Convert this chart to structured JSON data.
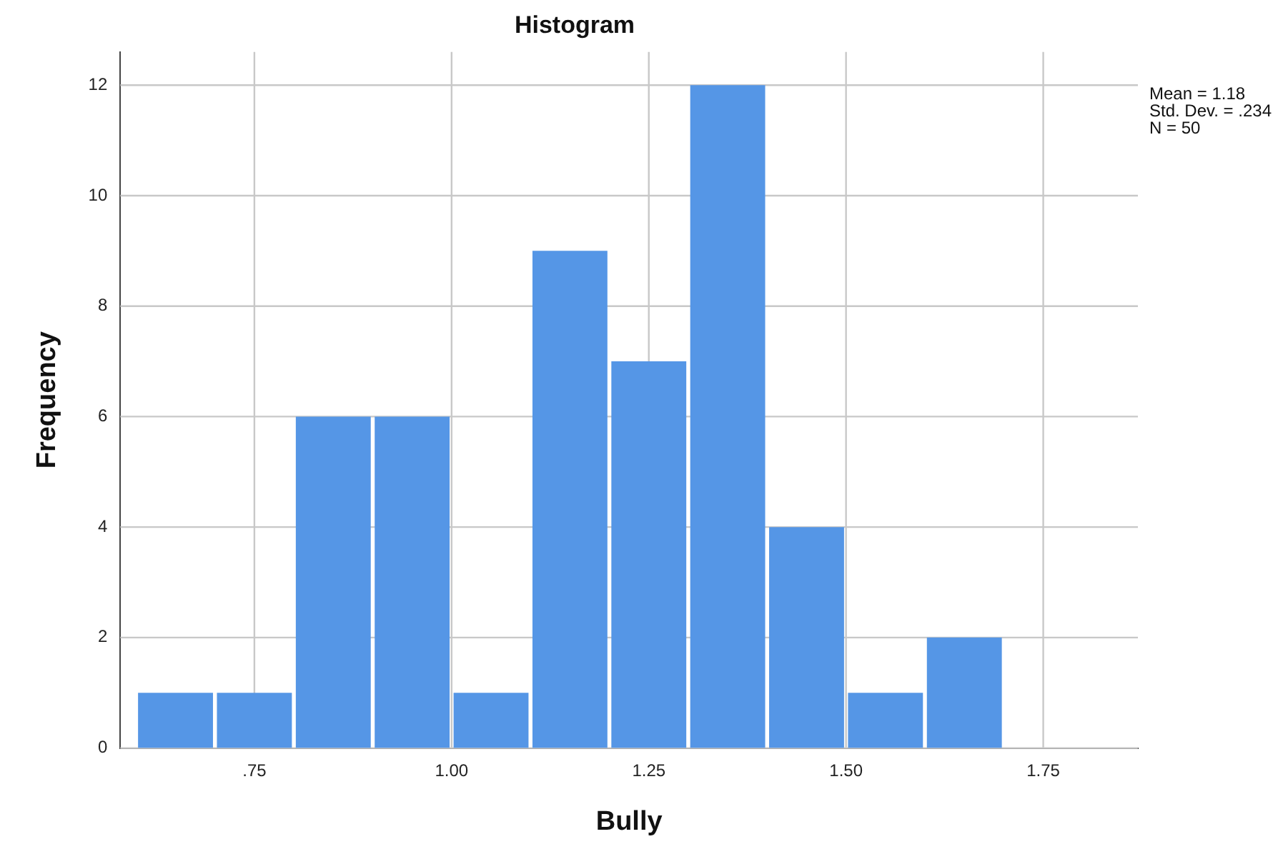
{
  "chart_data": {
    "type": "histogram",
    "title": "Histogram",
    "xlabel": "Bully",
    "ylabel": "Frequency",
    "bins": [
      0.6,
      0.7,
      0.8,
      0.9,
      1.0,
      1.1,
      1.2,
      1.3,
      1.4,
      1.5,
      1.6,
      1.7
    ],
    "values": [
      1,
      1,
      6,
      6,
      1,
      9,
      7,
      12,
      4,
      1,
      2
    ],
    "color": "#5596e6",
    "xlim": [
      0.58,
      1.87
    ],
    "xticks": [
      {
        "value": 0.75,
        "label": ".75"
      },
      {
        "value": 1.0,
        "label": "1.00"
      },
      {
        "value": 1.25,
        "label": "1.25"
      },
      {
        "value": 1.5,
        "label": "1.50"
      },
      {
        "value": 1.75,
        "label": "1.75"
      }
    ],
    "ylim": [
      0,
      12.6
    ],
    "yticks": [
      0,
      2,
      4,
      6,
      8,
      10,
      12
    ],
    "grid": true,
    "legend": false,
    "annotations": [
      "Mean = 1.18",
      "Std. Dev. = .234",
      "N = 50"
    ]
  }
}
